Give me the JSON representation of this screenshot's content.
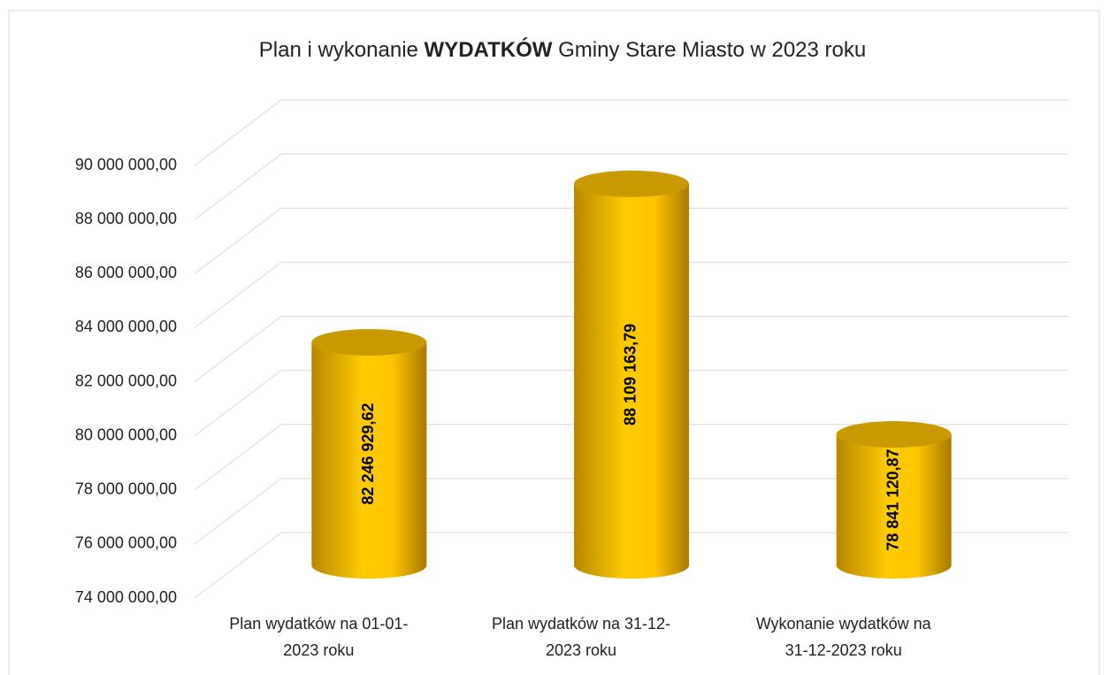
{
  "chart_data": {
    "type": "bar3d-cylinder",
    "title": [
      "Plan i wykonanie",
      "WYDATKÓW",
      "Gminy Stare Miasto w 2023 roku"
    ],
    "categories": [
      [
        "Plan wydatków na 01-01-",
        "2023 roku"
      ],
      [
        "Plan wydatków na 31-12-",
        "2023 roku"
      ],
      [
        "Wykonanie wydatków na",
        "31-12-2023 roku"
      ]
    ],
    "values": [
      82246929.62,
      88109163.79,
      78841120.87
    ],
    "value_labels": [
      "82 246 929,62",
      "88 109 163,79",
      "78 841 120,87"
    ],
    "color": "#ffc000",
    "ylim": [
      74000000,
      90000000
    ],
    "yticks": [
      {
        "value": 74000000,
        "label": "74 000 000,00"
      },
      {
        "value": 76000000,
        "label": "76 000 000,00"
      },
      {
        "value": 78000000,
        "label": "78 000 000,00"
      },
      {
        "value": 80000000,
        "label": "80 000 000,00"
      },
      {
        "value": 82000000,
        "label": "82 000 000,00"
      },
      {
        "value": 84000000,
        "label": "84 000 000,00"
      },
      {
        "value": 86000000,
        "label": "86 000 000,00"
      },
      {
        "value": 88000000,
        "label": "88 000 000,00"
      },
      {
        "value": 90000000,
        "label": "90 000 000,00"
      }
    ],
    "grid": true
  }
}
